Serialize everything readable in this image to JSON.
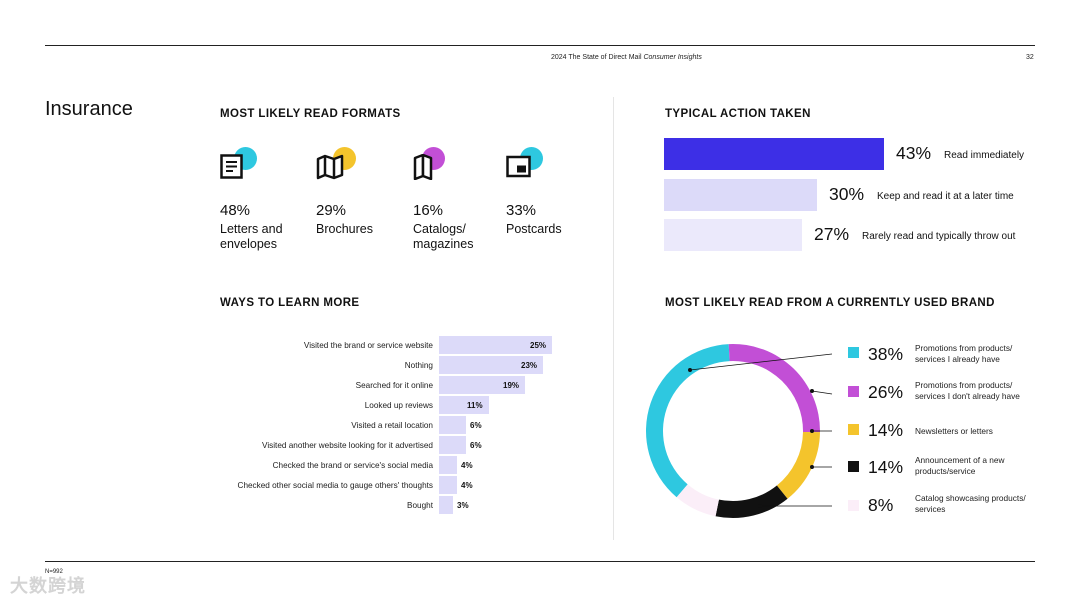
{
  "header": {
    "doc_title_plain": "2024 The State of Direct Mail ",
    "doc_title_italic": "Consumer Insights",
    "page_number": "32"
  },
  "page_heading": "Insurance",
  "sections": {
    "formats_title": "MOST LIKELY READ FORMATS",
    "action_title": "TYPICAL ACTION TAKEN",
    "ways_title": "WAYS TO LEARN MORE",
    "brand_title": "MOST LIKELY READ FROM A CURRENTLY USED BRAND"
  },
  "colors": {
    "cyan": "#2ec8e0",
    "yellow": "#f4c42c",
    "magenta": "#c24fd6",
    "black": "#111111",
    "light_pink": "#fbeef8",
    "indigo": "#3d2fe6",
    "lavender_mid": "#dcdaf9",
    "lavender_light": "#ebe9fb"
  },
  "formats": [
    {
      "pct": "48%",
      "label_line1": "Letters and",
      "label_line2": "envelopes",
      "icon": "letter-icon",
      "dot_color": "#2ec8e0"
    },
    {
      "pct": "29%",
      "label_line1": "Brochures",
      "label_line2": "",
      "icon": "brochure-icon",
      "dot_color": "#f4c42c"
    },
    {
      "pct": "16%",
      "label_line1": "Catalogs/",
      "label_line2": "magazines",
      "icon": "catalog-icon",
      "dot_color": "#c24fd6"
    },
    {
      "pct": "33%",
      "label_line1": "Postcards",
      "label_line2": "",
      "icon": "postcard-icon",
      "dot_color": "#2ec8e0"
    }
  ],
  "chart_data": [
    {
      "type": "bar",
      "orientation": "horizontal",
      "title": "TYPICAL ACTION TAKEN",
      "categories": [
        "Read immediately",
        "Keep and read it at a later time",
        "Rarely read and typically throw out"
      ],
      "values": [
        43,
        30,
        27
      ],
      "labels": [
        "43%",
        "30%",
        "27%"
      ],
      "colors": [
        "#3d2fe6",
        "#dcdaf9",
        "#ebe9fb"
      ]
    },
    {
      "type": "bar",
      "orientation": "horizontal",
      "title": "WAYS TO LEARN MORE",
      "categories": [
        "Visited the brand or service website",
        "Nothing",
        "Searched for it online",
        "Looked up reviews",
        "Visited a retail location",
        "Visited another website looking for it advertised",
        "Checked the brand or service's social media",
        "Checked other social media to gauge others' thoughts",
        "Bought"
      ],
      "values": [
        25,
        23,
        19,
        11,
        6,
        6,
        4,
        4,
        3
      ],
      "labels": [
        "25%",
        "23%",
        "19%",
        "11%",
        "6%",
        "6%",
        "4%",
        "4%",
        "3%"
      ]
    },
    {
      "type": "pie",
      "style": "donut",
      "title": "MOST LIKELY READ FROM A CURRENTLY USED BRAND",
      "categories": [
        "Promotions from products/ services I already have",
        "Promotions from products/ services I don't already have",
        "Newsletters or letters",
        "Announcement of a new products/service",
        "Catalog showcasing products/ services"
      ],
      "values": [
        38,
        26,
        14,
        14,
        8
      ],
      "labels": [
        "38%",
        "26%",
        "14%",
        "14%",
        "8%"
      ],
      "colors": [
        "#2ec8e0",
        "#c24fd6",
        "#f4c42c",
        "#111111",
        "#fbeef8"
      ],
      "legend_position": "right"
    }
  ],
  "brand_legend": [
    {
      "pct": "38%",
      "line1": "Promotions from products/",
      "line2": "services I already have"
    },
    {
      "pct": "26%",
      "line1": "Promotions from products/",
      "line2": "services I don't already have"
    },
    {
      "pct": "14%",
      "line1": "Newsletters or letters",
      "line2": ""
    },
    {
      "pct": "14%",
      "line1": "Announcement of a new",
      "line2": "products/service"
    },
    {
      "pct": "8%",
      "line1": "Catalog showcasing products/",
      "line2": "services"
    }
  ],
  "footnote": "N=992",
  "watermark": "大数跨境"
}
